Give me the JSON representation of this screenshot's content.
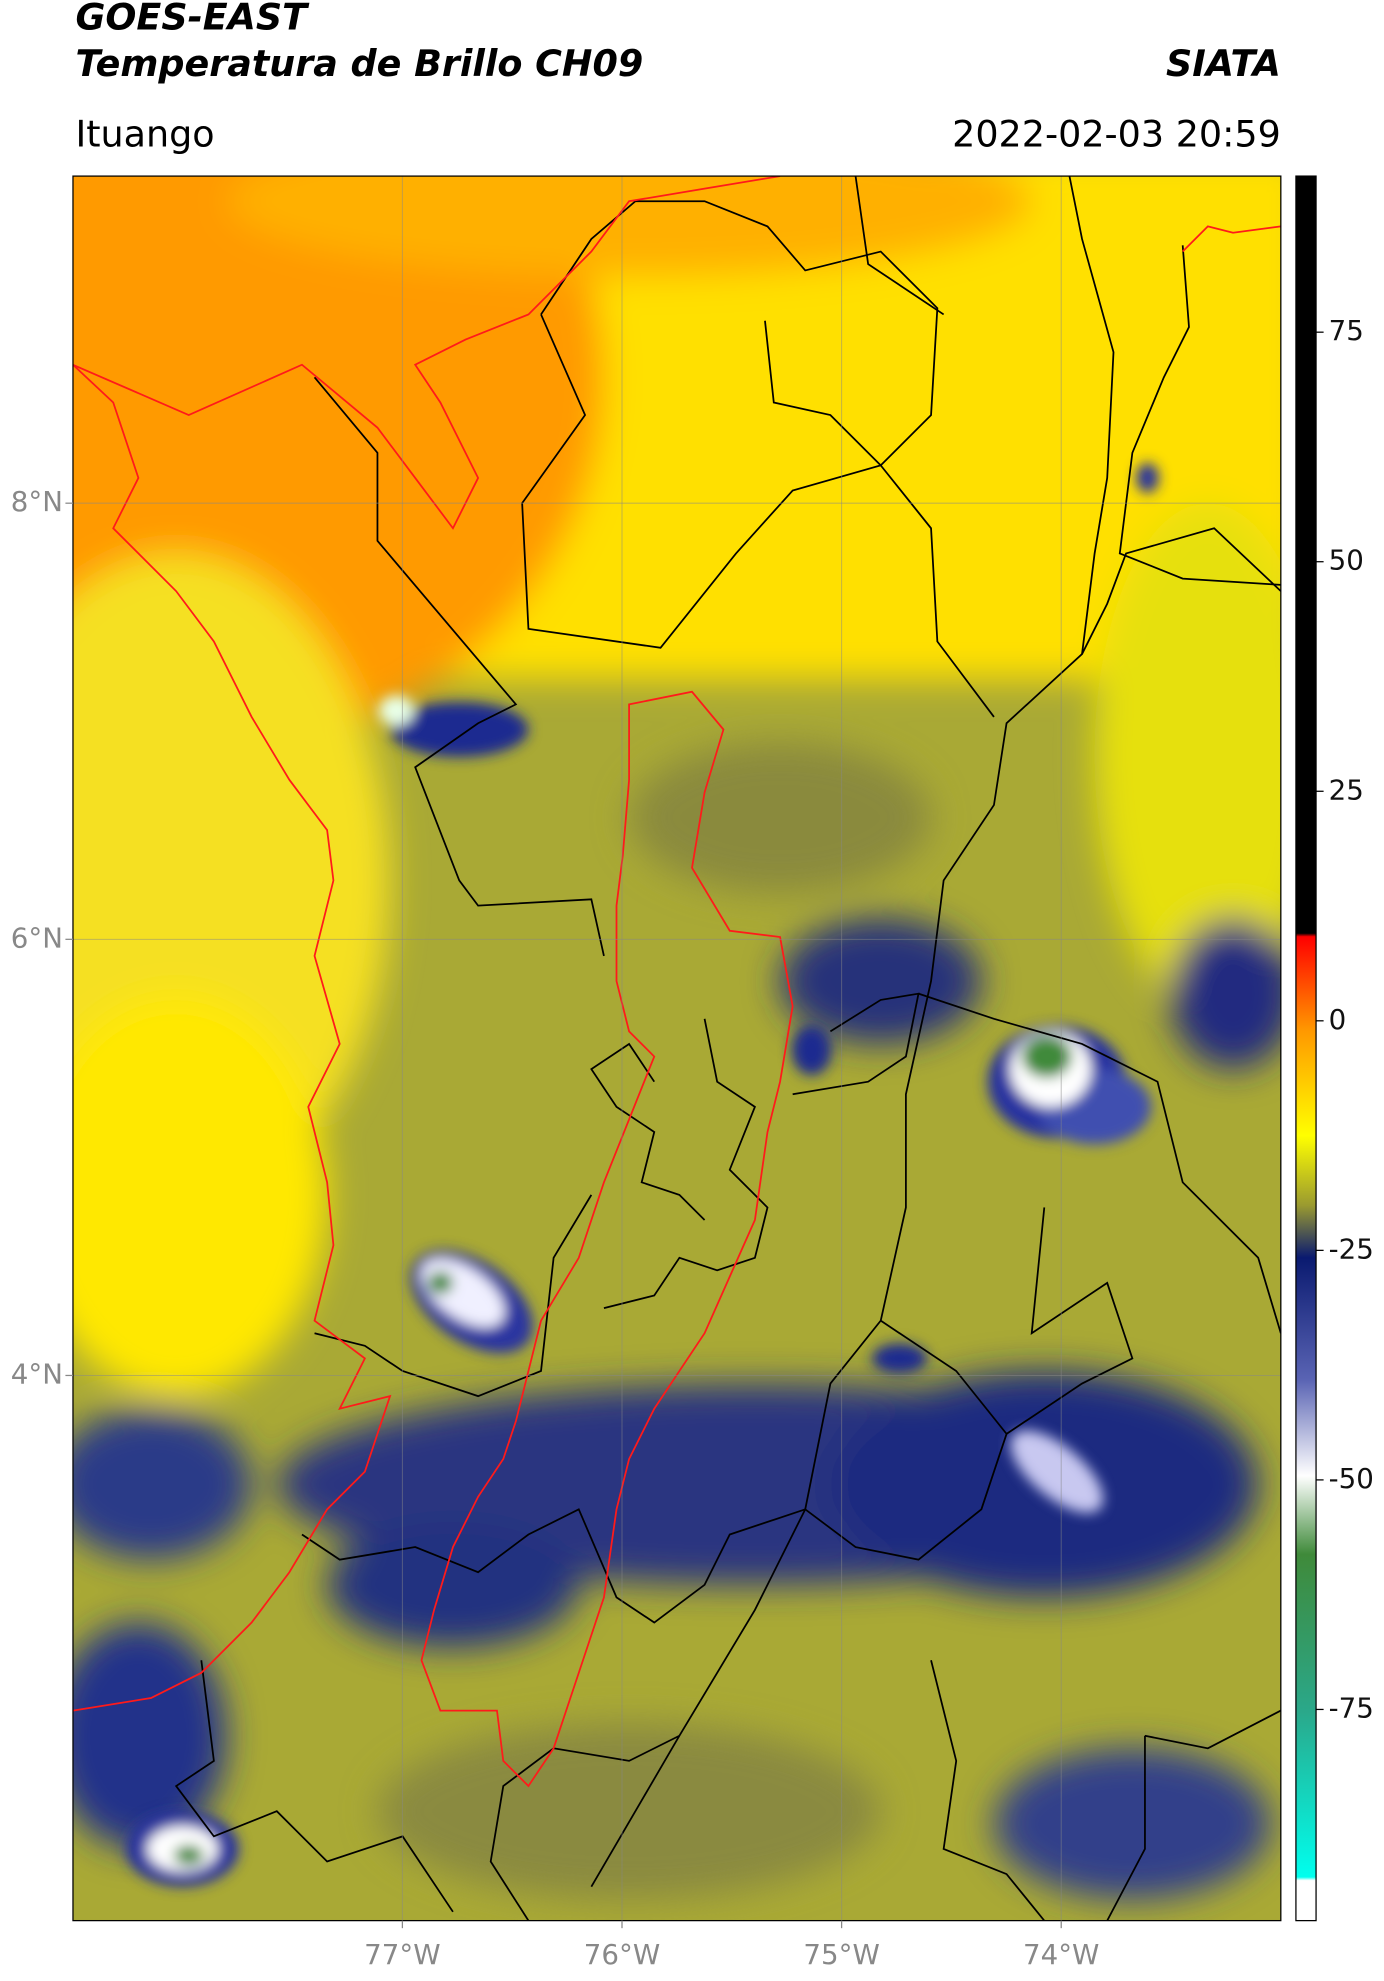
{
  "header": {
    "title": "GOES-EAST",
    "subtitle": "Temperatura de Brillo CH09",
    "agency": "SIATA",
    "location": "Ituango",
    "datetime": "2022-02-03 20:59"
  },
  "map": {
    "lon_lim": [
      -78.5,
      -73.0
    ],
    "lat_lim": [
      1.5,
      9.5
    ],
    "lon_ticks": [
      {
        "value": -77,
        "label": "77°W"
      },
      {
        "value": -76,
        "label": "76°W"
      },
      {
        "value": -75,
        "label": "75°W"
      },
      {
        "value": -74,
        "label": "74°W"
      }
    ],
    "lat_ticks": [
      {
        "value": 8,
        "label": "8°N"
      },
      {
        "value": 6,
        "label": "6°N"
      },
      {
        "value": 4,
        "label": "4°N"
      }
    ],
    "grid": true
  },
  "colorbar": {
    "lim": [
      -98,
      92
    ],
    "ticks": [
      75,
      50,
      25,
      0,
      -25,
      -50,
      -75
    ]
  }
}
